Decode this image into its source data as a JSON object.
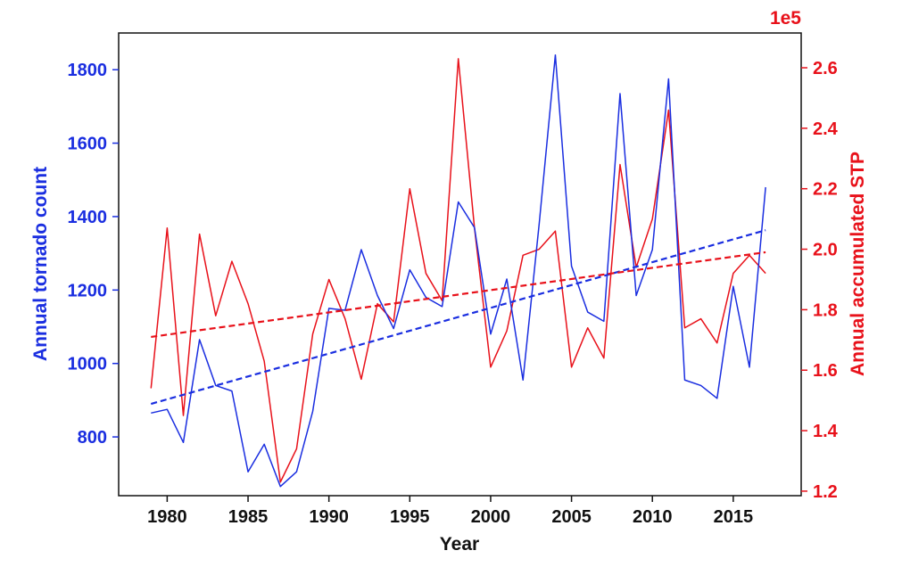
{
  "chart_data": {
    "type": "line",
    "title": "",
    "xlabel": "Year",
    "ylabel_left": "Annual tornado count",
    "ylabel_right": "Annual accumulated STP",
    "right_axis_multiplier": "1e5",
    "xlim": [
      1977,
      2019.2
    ],
    "ylim_left": [
      640,
      1900
    ],
    "ylim_right": [
      1.185,
      2.715
    ],
    "x_ticks": [
      1980,
      1985,
      1990,
      1995,
      2000,
      2005,
      2010,
      2015
    ],
    "x_tick_labels": [
      "1980",
      "1985",
      "1990",
      "1995",
      "2000",
      "2005",
      "2010",
      "2015"
    ],
    "y_left_ticks": [
      800,
      1000,
      1200,
      1400,
      1600,
      1800
    ],
    "y_left_tick_labels": [
      "800",
      "1000",
      "1200",
      "1400",
      "1600",
      "1800"
    ],
    "y_right_ticks": [
      1.2,
      1.4,
      1.6,
      1.8,
      2.0,
      2.2,
      2.4,
      2.6
    ],
    "y_right_tick_labels": [
      "1.2",
      "1.4",
      "1.6",
      "1.8",
      "2.0",
      "2.2",
      "2.4",
      "2.6"
    ],
    "x": [
      1979,
      1980,
      1981,
      1982,
      1983,
      1984,
      1985,
      1986,
      1987,
      1988,
      1989,
      1990,
      1991,
      1992,
      1993,
      1994,
      1995,
      1996,
      1997,
      1998,
      1999,
      2000,
      2001,
      2002,
      2003,
      2004,
      2005,
      2006,
      2007,
      2008,
      2009,
      2010,
      2011,
      2012,
      2013,
      2014,
      2015,
      2016,
      2017
    ],
    "series": [
      {
        "name": "Annual tornado count",
        "axis": "left",
        "color": "#1a2ee0",
        "values": [
          865,
          875,
          785,
          1065,
          940,
          925,
          705,
          780,
          665,
          705,
          870,
          1150,
          1145,
          1310,
          1185,
          1095,
          1255,
          1180,
          1155,
          1440,
          1370,
          1080,
          1230,
          955,
          1380,
          1840,
          1265,
          1140,
          1115,
          1735,
          1185,
          1310,
          1775,
          955,
          940,
          905,
          1210,
          990,
          1480
        ]
      },
      {
        "name": "Annual accumulated STP",
        "axis": "right",
        "color": "#e8111a",
        "values": [
          1.54,
          2.07,
          1.45,
          2.05,
          1.78,
          1.96,
          1.82,
          1.63,
          1.23,
          1.34,
          1.72,
          1.9,
          1.77,
          1.57,
          1.82,
          1.76,
          2.2,
          1.92,
          1.83,
          2.63,
          2.07,
          1.61,
          1.73,
          1.98,
          2.0,
          2.06,
          1.61,
          1.74,
          1.64,
          2.28,
          1.94,
          2.1,
          2.46,
          1.74,
          1.77,
          1.69,
          1.92,
          1.98,
          1.92
        ]
      }
    ],
    "trendlines": [
      {
        "name": "tornado count trend",
        "axis": "left",
        "color": "#1a2ee0",
        "style": "dashed",
        "x": [
          1979,
          2017
        ],
        "values": [
          890,
          1363
        ]
      },
      {
        "name": "STP trend",
        "axis": "right",
        "color": "#e8111a",
        "style": "dashed",
        "x": [
          1979,
          2017
        ],
        "values": [
          1.71,
          1.99
        ]
      }
    ],
    "left_axis_color": "#1a2ee0",
    "right_axis_color": "#e8111a",
    "bottom_axis_color": "#111111",
    "grid": false
  }
}
